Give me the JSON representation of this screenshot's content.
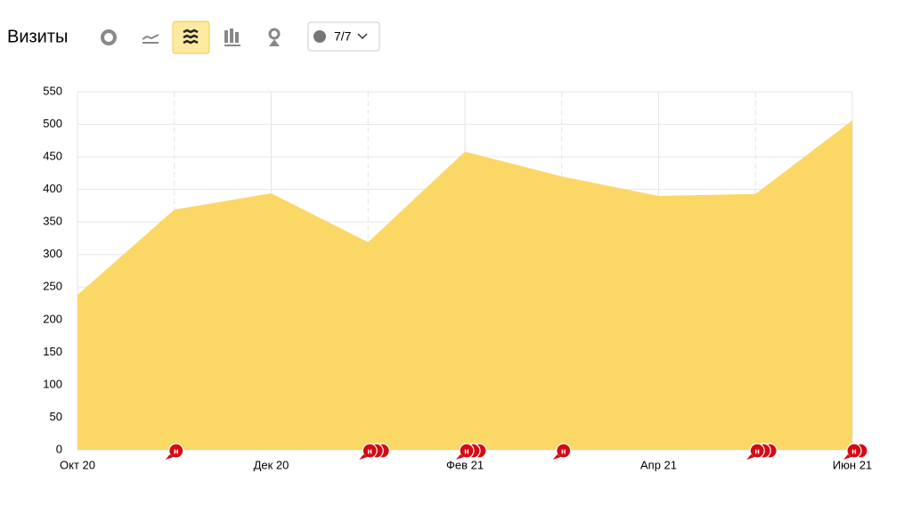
{
  "chart_data": {
    "type": "area",
    "title": "Визиты",
    "series_counter": "7/7",
    "categories": [
      "Окт 20",
      null,
      "Дек 20",
      null,
      "Фев 21",
      null,
      "Апр 21",
      null,
      "Июн 21"
    ],
    "values": [
      238,
      369,
      394,
      319,
      458,
      420,
      390,
      393,
      506
    ],
    "color": "#fbd766",
    "ylim": [
      0,
      550
    ],
    "yticks": [
      0,
      50,
      100,
      150,
      200,
      250,
      300,
      350,
      400,
      450,
      500,
      550
    ],
    "grid": true,
    "annotations": [
      {
        "x_index": 1,
        "label": "н",
        "count": 1
      },
      {
        "x_index": 3,
        "label": "н",
        "count": 3
      },
      {
        "x_index": 4,
        "label": "н",
        "count": 3
      },
      {
        "x_index": 5,
        "label": "н",
        "count": 1
      },
      {
        "x_index": 7,
        "label": "н",
        "count": 3
      },
      {
        "x_index": 8,
        "label": "н",
        "count": 2
      }
    ]
  }
}
